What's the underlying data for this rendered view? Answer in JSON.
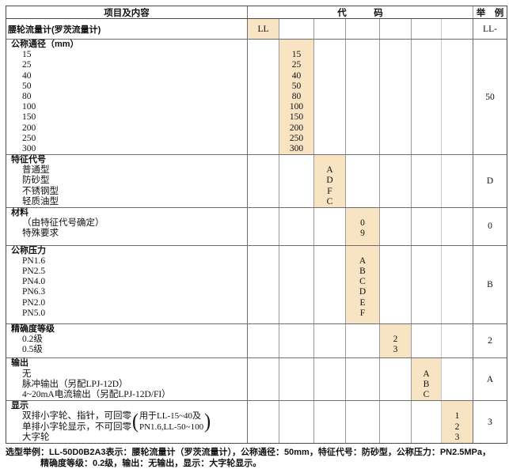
{
  "colors": {
    "highlight": "#f8e3c3"
  },
  "header": {
    "items": "项目及内容",
    "code": "代　　　码",
    "example": "举　例"
  },
  "sections": [
    {
      "title": "腰轮流量计(罗茨流量计)",
      "codes": [
        "LL"
      ],
      "example": "LL-"
    },
    {
      "title": "公称通径（mm）",
      "items": [
        "15",
        "25",
        "40",
        "50",
        "80",
        "100",
        "150",
        "200",
        "250",
        "300"
      ],
      "codes": [
        "15",
        "25",
        "40",
        "50",
        "80",
        "100",
        "150",
        "200",
        "250",
        "300"
      ],
      "example": "50"
    },
    {
      "title": "特征代号",
      "items": [
        "普通型",
        "防砂型",
        "不锈钢型",
        "轻质油型"
      ],
      "codes": [
        "A",
        "D",
        "F",
        "C"
      ],
      "example": "D"
    },
    {
      "title": "材料",
      "items": [
        "（由特征代号确定）",
        "特殊要求"
      ],
      "codes": [
        "0",
        "9"
      ],
      "example": "0"
    },
    {
      "title": "公称压力",
      "items": [
        "PN1.6",
        "PN2.5",
        "PN4.0",
        "PN6.3",
        "PN2.0",
        "PN5.0"
      ],
      "codes": [
        "A",
        "B",
        "C",
        "D",
        "E",
        "F"
      ],
      "example": "B"
    },
    {
      "title": "精确度等级",
      "items": [
        "0.2级",
        "0.5级"
      ],
      "codes": [
        "2",
        "3"
      ],
      "example": "2"
    },
    {
      "title": "输出",
      "items": [
        "无",
        "脉冲输出（另配LPJ-12D）",
        "4~20mA电流输出（另配LPJ-12D/FI）"
      ],
      "codes": [
        "A",
        "B",
        "C"
      ],
      "example": "A"
    },
    {
      "title": "显示",
      "brace": {
        "left1": "双排小字轮、指针，可回零",
        "left2": "单排小字轮显示，不可回零",
        "open": "(",
        "note1": "用于LL-15~40及",
        "note2": "PN1.6,LL-50~100",
        "close": ")"
      },
      "last_item": "大字轮",
      "codes": [
        "1",
        "2",
        "3"
      ],
      "example": "3"
    }
  ],
  "footer": {
    "line1": "选型举例：LL-50D0B2A3表示：腰轮流量计（罗茨流量计），公称通径：50mm，特征代号：防砂型，公称压力：PN2.5MPa，",
    "line2": "精确度等级：0.2级，输出：无输出，显示：大字轮显示。"
  }
}
